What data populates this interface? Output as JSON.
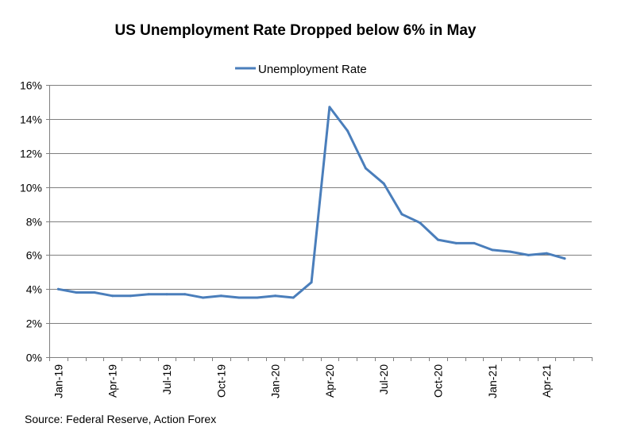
{
  "chart_data": {
    "type": "line",
    "title": "US Unemployment Rate Dropped below 6% in May",
    "source": "Source: Federal Reserve, Action Forex",
    "xlabel": "",
    "ylabel": "",
    "legend_position": "top-center",
    "grid": true,
    "colors": {
      "line": "#4a7ebb",
      "grid": "#7f7f7f",
      "axis": "#7f7f7f",
      "text": "#000000"
    },
    "ylim": [
      0,
      16
    ],
    "y_tick_values": [
      0,
      2,
      4,
      6,
      8,
      10,
      12,
      14,
      16
    ],
    "y_tick_labels": [
      "0%",
      "2%",
      "4%",
      "6%",
      "8%",
      "10%",
      "12%",
      "14%",
      "16%"
    ],
    "x_tick_labels": [
      "Jan-19",
      "Apr-19",
      "Jul-19",
      "Oct-19",
      "Jan-20",
      "Apr-20",
      "Jul-20",
      "Oct-20",
      "Jan-21",
      "Apr-21"
    ],
    "x_tick_label_every": 3,
    "categories": [
      "Jan-19",
      "Feb-19",
      "Mar-19",
      "Apr-19",
      "May-19",
      "Jun-19",
      "Jul-19",
      "Aug-19",
      "Sep-19",
      "Oct-19",
      "Nov-19",
      "Dec-19",
      "Jan-20",
      "Feb-20",
      "Mar-20",
      "Apr-20",
      "May-20",
      "Jun-20",
      "Jul-20",
      "Aug-20",
      "Sep-20",
      "Oct-20",
      "Nov-20",
      "Dec-20",
      "Jan-21",
      "Feb-21",
      "Mar-21",
      "Apr-21",
      "May-21"
    ],
    "series": [
      {
        "name": "Unemployment Rate",
        "values": [
          4.0,
          3.8,
          3.8,
          3.6,
          3.6,
          3.7,
          3.7,
          3.7,
          3.5,
          3.6,
          3.5,
          3.5,
          3.6,
          3.5,
          4.4,
          14.7,
          13.3,
          11.1,
          10.2,
          8.4,
          7.9,
          6.9,
          6.7,
          6.7,
          6.3,
          6.2,
          6.0,
          6.1,
          5.8
        ]
      }
    ]
  }
}
